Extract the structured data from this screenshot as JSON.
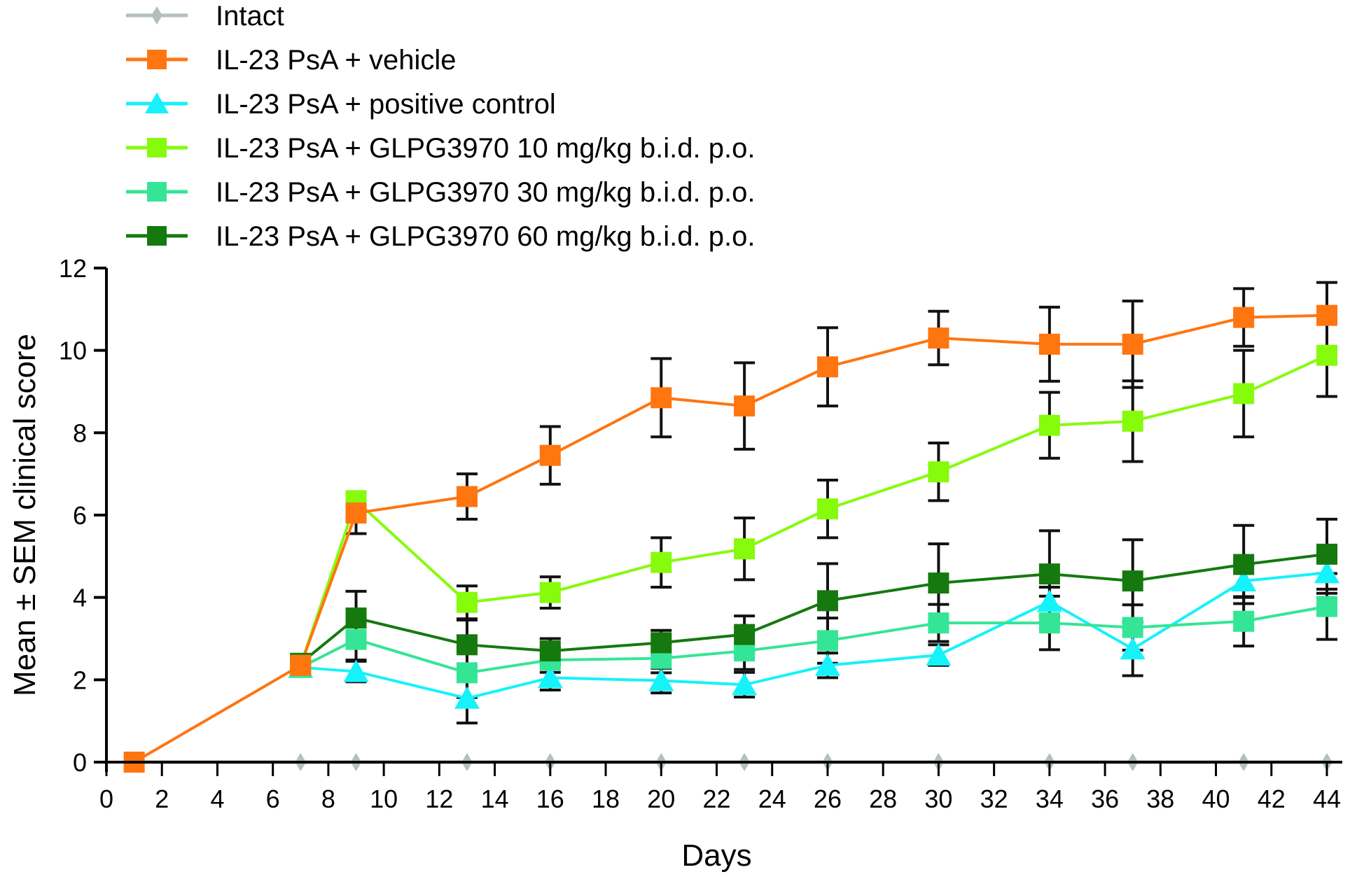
{
  "chart_data": {
    "type": "line",
    "title": "",
    "xlabel": "Days",
    "ylabel": "Mean ± SEM clinical score",
    "xlim": [
      0,
      44
    ],
    "ylim": [
      0,
      12
    ],
    "xticks": [
      "0",
      "2",
      "4",
      "6",
      "8",
      "10",
      "12",
      "14",
      "16",
      "18",
      "20",
      "22",
      "24",
      "26",
      "28",
      "30",
      "32",
      "34",
      "36",
      "38",
      "40",
      "42",
      "44"
    ],
    "yticks": [
      "0",
      "2",
      "4",
      "6",
      "8",
      "10",
      "12"
    ],
    "grid": false,
    "legend_position": "top-left",
    "series": [
      {
        "name": "Intact",
        "color": "#b2bfbd",
        "marker": "diamond",
        "x": [
          7,
          9,
          13,
          16,
          20,
          23,
          26,
          30,
          34,
          37,
          41,
          44
        ],
        "y": [
          0,
          0,
          0,
          0,
          0,
          0,
          0,
          0,
          0,
          0,
          0,
          0
        ],
        "sem": [
          0,
          0,
          0,
          0,
          0,
          0,
          0,
          0,
          0,
          0,
          0,
          0
        ]
      },
      {
        "name": "IL-23 PsA + vehicle",
        "color": "#ff7510",
        "marker": "square",
        "x": [
          1,
          7,
          9,
          13,
          16,
          20,
          23,
          26,
          30,
          34,
          37,
          41,
          44
        ],
        "y": [
          0,
          2.35,
          6.05,
          6.45,
          7.45,
          8.85,
          8.65,
          9.6,
          10.3,
          10.15,
          10.15,
          10.8,
          10.85
        ],
        "sem": [
          0,
          0.25,
          0.5,
          0.55,
          0.7,
          0.95,
          1.05,
          0.95,
          0.65,
          0.9,
          1.05,
          0.7,
          0.8
        ]
      },
      {
        "name": "IL-23 PsA + positive control",
        "color": "#16f2fa",
        "marker": "triangle",
        "x": [
          7,
          9,
          13,
          16,
          20,
          23,
          26,
          30,
          34,
          37,
          41,
          44
        ],
        "y": [
          2.3,
          2.2,
          1.55,
          2.05,
          1.98,
          1.88,
          2.35,
          2.6,
          3.9,
          2.75,
          4.4,
          4.6
        ],
        "sem": [
          0.2,
          0.25,
          0.6,
          0.3,
          0.3,
          0.3,
          0.3,
          0.25,
          0.35,
          0.65,
          0.4,
          0.5
        ]
      },
      {
        "name": "IL-23 PsA + GLPG3970 10 mg/kg b.i.d. p.o.",
        "color": "#86fb0c",
        "marker": "square",
        "x": [
          7,
          9,
          13,
          16,
          20,
          23,
          26,
          30,
          34,
          37,
          41,
          44
        ],
        "y": [
          2.35,
          6.35,
          3.88,
          4.12,
          4.85,
          5.18,
          6.15,
          7.05,
          8.18,
          8.28,
          8.95,
          9.88
        ],
        "sem": [
          0.2,
          0.2,
          0.4,
          0.38,
          0.6,
          0.75,
          0.7,
          0.7,
          0.8,
          0.98,
          1.05,
          1.0
        ]
      },
      {
        "name": "IL-23 PsA + GLPG3970 30 mg/kg b.i.d. p.o.",
        "color": "#35e596",
        "marker": "square",
        "x": [
          7,
          9,
          13,
          16,
          20,
          23,
          26,
          30,
          34,
          37,
          41,
          44
        ],
        "y": [
          2.3,
          2.98,
          2.17,
          2.48,
          2.52,
          2.7,
          2.95,
          3.38,
          3.38,
          3.27,
          3.42,
          3.78
        ],
        "sem": [
          0.2,
          0.5,
          0.6,
          0.3,
          0.35,
          0.45,
          0.55,
          0.45,
          0.65,
          0.55,
          0.6,
          0.8
        ]
      },
      {
        "name": "IL-23 PsA + GLPG3970 60 mg/kg b.i.d. p.o.",
        "color": "#15790f",
        "marker": "square",
        "x": [
          7,
          9,
          13,
          16,
          20,
          23,
          26,
          30,
          34,
          37,
          41,
          44
        ],
        "y": [
          2.4,
          3.5,
          2.85,
          2.7,
          2.9,
          3.1,
          3.92,
          4.35,
          4.57,
          4.4,
          4.8,
          5.05
        ],
        "sem": [
          0.2,
          0.65,
          0.6,
          0.3,
          0.3,
          0.45,
          0.9,
          0.95,
          1.05,
          1.0,
          0.95,
          0.85
        ]
      }
    ]
  }
}
